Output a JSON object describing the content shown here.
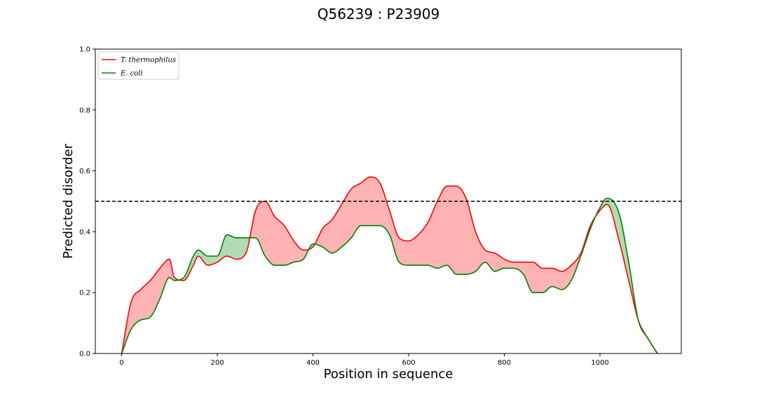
{
  "chart_data": {
    "type": "line",
    "title": "Q56239 : P23909",
    "xlabel": "Position in sequence",
    "ylabel": "Predicted disorder",
    "xlim": [
      -55,
      1170
    ],
    "ylim": [
      0,
      1.0
    ],
    "xticks": [
      0,
      200,
      400,
      600,
      800,
      1000
    ],
    "yticks": [
      "0.0",
      "0.2",
      "0.4",
      "0.6",
      "0.8",
      "1.0"
    ],
    "threshold": 0.5,
    "legend": {
      "placement": "top-left",
      "entries": [
        "T. thermophilus",
        "E. coli"
      ]
    },
    "series": [
      {
        "name": "T. thermophilus",
        "color": "#ff0000",
        "fill": "#ffb3b3",
        "x": [
          0,
          20,
          40,
          60,
          80,
          100,
          110,
          130,
          150,
          160,
          180,
          200,
          220,
          240,
          260,
          280,
          300,
          320,
          340,
          360,
          380,
          400,
          420,
          440,
          460,
          480,
          500,
          520,
          540,
          560,
          580,
          600,
          620,
          640,
          660,
          680,
          700,
          720,
          740,
          760,
          780,
          800,
          820,
          840,
          860,
          880,
          900,
          920,
          940,
          960,
          980,
          1000,
          1015,
          1040,
          1060,
          1080,
          1100,
          1120
        ],
        "y": [
          0.0,
          0.17,
          0.21,
          0.24,
          0.28,
          0.31,
          0.25,
          0.24,
          0.29,
          0.32,
          0.29,
          0.3,
          0.32,
          0.31,
          0.33,
          0.47,
          0.5,
          0.45,
          0.42,
          0.37,
          0.34,
          0.35,
          0.41,
          0.44,
          0.49,
          0.54,
          0.56,
          0.58,
          0.56,
          0.47,
          0.38,
          0.37,
          0.39,
          0.43,
          0.5,
          0.55,
          0.55,
          0.51,
          0.4,
          0.34,
          0.33,
          0.31,
          0.3,
          0.3,
          0.3,
          0.28,
          0.28,
          0.27,
          0.29,
          0.33,
          0.42,
          0.47,
          0.49,
          0.37,
          0.24,
          0.11,
          0.05,
          0.0
        ]
      },
      {
        "name": "E. coli",
        "color": "#008000",
        "fill": "#b3dbb3",
        "x": [
          0,
          20,
          40,
          60,
          80,
          100,
          110,
          130,
          150,
          160,
          180,
          200,
          220,
          240,
          260,
          280,
          300,
          320,
          340,
          360,
          380,
          400,
          420,
          440,
          460,
          480,
          500,
          520,
          540,
          560,
          580,
          600,
          620,
          640,
          660,
          680,
          700,
          720,
          740,
          760,
          780,
          800,
          820,
          840,
          860,
          880,
          900,
          920,
          940,
          960,
          980,
          1000,
          1015,
          1040,
          1060,
          1080,
          1100,
          1120
        ],
        "y": [
          0.0,
          0.08,
          0.11,
          0.12,
          0.18,
          0.25,
          0.24,
          0.25,
          0.32,
          0.34,
          0.32,
          0.32,
          0.39,
          0.38,
          0.38,
          0.38,
          0.32,
          0.29,
          0.29,
          0.3,
          0.31,
          0.36,
          0.35,
          0.33,
          0.35,
          0.38,
          0.42,
          0.42,
          0.42,
          0.39,
          0.3,
          0.29,
          0.29,
          0.29,
          0.28,
          0.29,
          0.26,
          0.26,
          0.27,
          0.3,
          0.27,
          0.28,
          0.28,
          0.26,
          0.2,
          0.2,
          0.22,
          0.21,
          0.24,
          0.32,
          0.41,
          0.48,
          0.51,
          0.46,
          0.3,
          0.11,
          0.05,
          0.0
        ]
      }
    ]
  }
}
